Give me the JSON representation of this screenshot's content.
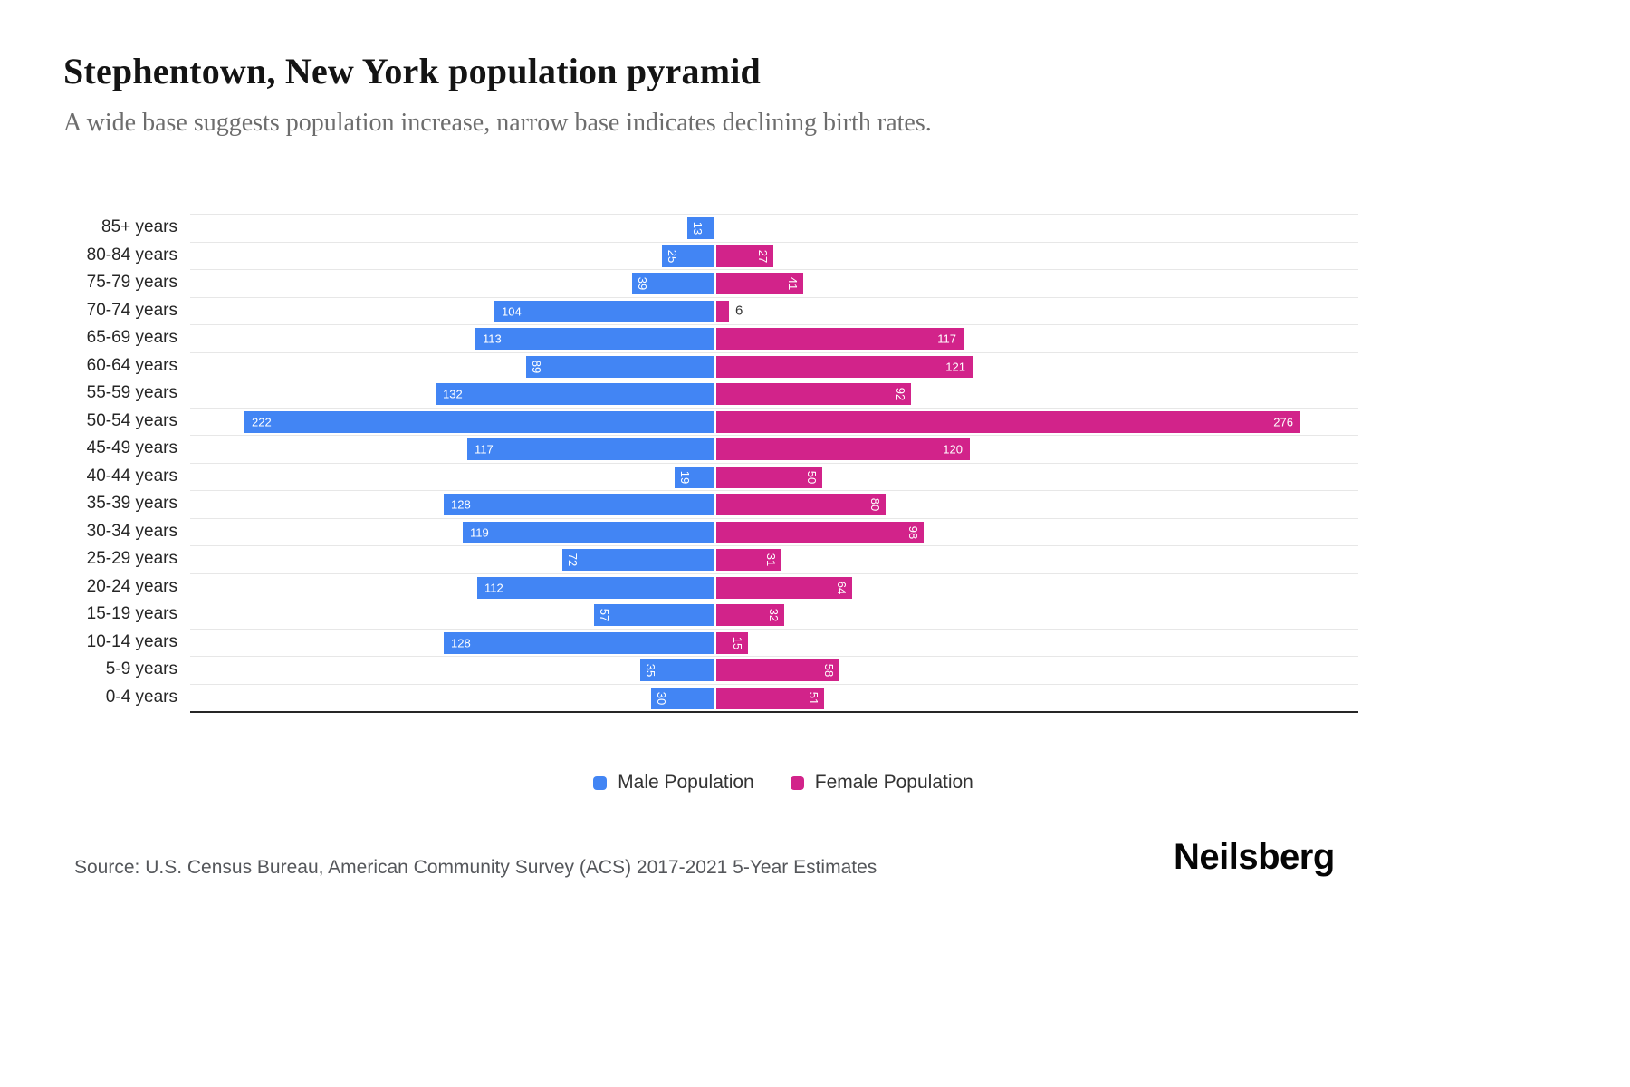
{
  "header": {
    "title": "Stephentown, New York population pyramid",
    "subtitle": "A wide base suggests population increase, narrow base indicates declining birth rates."
  },
  "legend": [
    {
      "label": "Male Population",
      "color": "#4285f4"
    },
    {
      "label": "Female Population",
      "color": "#d2238a"
    }
  ],
  "footer": {
    "source": "Source: U.S. Census Bureau, American Community Survey (ACS) 2017-2021 5-Year Estimates",
    "logo": "Neilsberg"
  },
  "chart_data": {
    "type": "bar",
    "variant": "population-pyramid",
    "title": "Stephentown, New York population pyramid",
    "categories": [
      "85+ years",
      "80-84 years",
      "75-79 years",
      "70-74 years",
      "65-69 years",
      "60-64 years",
      "55-59 years",
      "50-54 years",
      "45-49 years",
      "40-44 years",
      "35-39 years",
      "30-34 years",
      "25-29 years",
      "20-24 years",
      "15-19 years",
      "10-14 years",
      "5-9 years",
      "0-4 years"
    ],
    "series": [
      {
        "name": "Male Population",
        "color": "#4285f4",
        "values": [
          13,
          25,
          39,
          104,
          113,
          89,
          132,
          222,
          117,
          19,
          128,
          119,
          72,
          112,
          57,
          128,
          35,
          30
        ]
      },
      {
        "name": "Female Population",
        "color": "#d2238a",
        "values": [
          0,
          27,
          41,
          6,
          117,
          121,
          92,
          276,
          120,
          50,
          80,
          98,
          31,
          64,
          32,
          15,
          58,
          51
        ]
      }
    ],
    "value_axis_max": 280,
    "grid": true,
    "legend_position": "bottom",
    "bar_label_color_inside": "#ffffff",
    "bar_label_color_outside": "#333333"
  }
}
